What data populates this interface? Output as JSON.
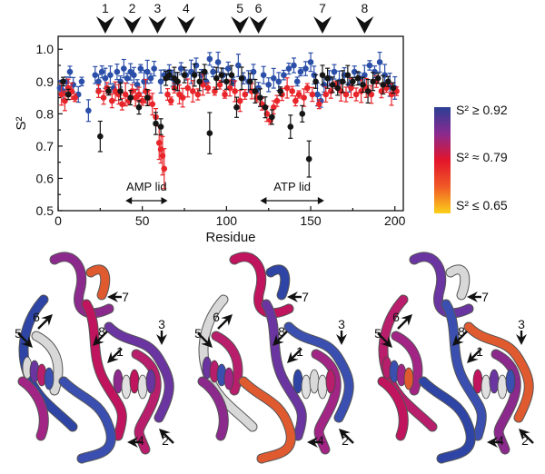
{
  "chart_data": {
    "type": "scatter",
    "xlabel": "Residue",
    "ylabel": "S²",
    "xlim": [
      0,
      205
    ],
    "ylim": [
      0.5,
      1.04
    ],
    "xticks": [
      0,
      50,
      100,
      150,
      200
    ],
    "yticks": [
      0.5,
      0.6,
      0.7,
      0.8,
      0.9,
      1.0
    ],
    "ytick_labels": [
      "0.5",
      "0.6",
      "0.7",
      "0.8",
      "0.9",
      "1.0"
    ],
    "top_markers": [
      {
        "label": "1",
        "residue": 28
      },
      {
        "label": "2",
        "residue": 44
      },
      {
        "label": "3",
        "residue": 59
      },
      {
        "label": "4",
        "residue": 76
      },
      {
        "label": "5",
        "residue": 108
      },
      {
        "label": "6",
        "residue": 119
      },
      {
        "label": "7",
        "residue": 157
      },
      {
        "label": "8",
        "residue": 182
      }
    ],
    "regions": [
      {
        "label": "AMP lid",
        "start": 40,
        "end": 65
      },
      {
        "label": "ATP lid",
        "start": 120,
        "end": 158
      }
    ],
    "series": [
      {
        "color": "#2b4fa8",
        "points": [
          [
            1,
            0.88
          ],
          [
            3,
            0.87
          ],
          [
            5,
            0.9
          ],
          [
            7,
            0.93
          ],
          [
            9,
            0.89
          ],
          [
            12,
            0.86
          ],
          [
            14,
            0.9
          ],
          [
            18,
            0.81
          ],
          [
            22,
            0.92
          ],
          [
            24,
            0.9
          ],
          [
            26,
            0.93
          ],
          [
            28,
            0.91
          ],
          [
            31,
            0.92
          ],
          [
            33,
            0.88
          ],
          [
            35,
            0.93
          ],
          [
            37,
            0.9
          ],
          [
            39,
            0.94
          ],
          [
            41,
            0.91
          ],
          [
            43,
            0.93
          ],
          [
            45,
            0.92
          ],
          [
            47,
            0.89
          ],
          [
            49,
            0.94
          ],
          [
            51,
            0.9
          ],
          [
            53,
            0.93
          ],
          [
            55,
            0.91
          ],
          [
            57,
            0.94
          ],
          [
            61,
            0.9
          ],
          [
            63,
            0.92
          ],
          [
            66,
            0.93
          ],
          [
            68,
            0.91
          ],
          [
            70,
            0.9
          ],
          [
            73,
            0.94
          ],
          [
            76,
            0.92
          ],
          [
            79,
            0.93
          ],
          [
            82,
            0.95
          ],
          [
            85,
            0.92
          ],
          [
            88,
            0.9
          ],
          [
            90,
            0.97
          ],
          [
            92,
            0.93
          ],
          [
            95,
            0.96
          ],
          [
            98,
            0.92
          ],
          [
            101,
            0.94
          ],
          [
            104,
            0.9
          ],
          [
            107,
            0.95
          ],
          [
            110,
            0.91
          ],
          [
            113,
            0.9
          ],
          [
            116,
            0.93
          ],
          [
            119,
            0.88
          ],
          [
            122,
            0.92
          ],
          [
            125,
            0.89
          ],
          [
            128,
            0.91
          ],
          [
            131,
            0.9
          ],
          [
            134,
            0.92
          ],
          [
            137,
            0.94
          ],
          [
            140,
            0.95
          ],
          [
            142,
            0.9
          ],
          [
            144,
            0.93
          ],
          [
            147,
            0.94
          ],
          [
            150,
            0.96
          ],
          [
            152,
            0.92
          ],
          [
            154,
            0.86
          ],
          [
            156,
            0.84
          ],
          [
            158,
            0.89
          ],
          [
            161,
            0.91
          ],
          [
            164,
            0.93
          ],
          [
            167,
            0.9
          ],
          [
            170,
            0.92
          ],
          [
            173,
            0.89
          ],
          [
            176,
            0.93
          ],
          [
            179,
            0.91
          ],
          [
            182,
            0.92
          ],
          [
            185,
            0.95
          ],
          [
            188,
            0.93
          ],
          [
            191,
            0.96
          ],
          [
            194,
            0.92
          ],
          [
            197,
            0.89
          ],
          [
            200,
            0.88
          ]
        ]
      },
      {
        "color": "#e8252a",
        "points": [
          [
            2,
            0.86
          ],
          [
            4,
            0.84
          ],
          [
            6,
            0.88
          ],
          [
            8,
            0.87
          ],
          [
            10,
            0.85
          ],
          [
            24,
            0.87
          ],
          [
            27,
            0.85
          ],
          [
            29,
            0.88
          ],
          [
            32,
            0.84
          ],
          [
            34,
            0.87
          ],
          [
            36,
            0.86
          ],
          [
            38,
            0.83
          ],
          [
            40,
            0.86
          ],
          [
            42,
            0.84
          ],
          [
            44,
            0.87
          ],
          [
            46,
            0.85
          ],
          [
            48,
            0.86
          ],
          [
            50,
            0.84
          ],
          [
            52,
            0.87
          ],
          [
            54,
            0.85
          ],
          [
            56,
            0.83
          ],
          [
            58,
            0.79
          ],
          [
            60,
            0.71
          ],
          [
            61,
            0.69
          ],
          [
            62,
            0.67
          ],
          [
            63,
            0.63
          ],
          [
            65,
            0.86
          ],
          [
            67,
            0.84
          ],
          [
            69,
            0.88
          ],
          [
            72,
            0.86
          ],
          [
            74,
            0.85
          ],
          [
            77,
            0.88
          ],
          [
            80,
            0.87
          ],
          [
            83,
            0.86
          ],
          [
            86,
            0.89
          ],
          [
            89,
            0.88
          ],
          [
            93,
            0.87
          ],
          [
            96,
            0.89
          ],
          [
            99,
            0.86
          ],
          [
            102,
            0.88
          ],
          [
            105,
            0.87
          ],
          [
            108,
            0.84
          ],
          [
            111,
            0.86
          ],
          [
            115,
            0.87
          ],
          [
            118,
            0.85
          ],
          [
            121,
            0.83
          ],
          [
            124,
            0.8
          ],
          [
            126,
            0.78
          ],
          [
            128,
            0.82
          ],
          [
            130,
            0.84
          ],
          [
            133,
            0.86
          ],
          [
            136,
            0.88
          ],
          [
            139,
            0.87
          ],
          [
            141,
            0.84
          ],
          [
            143,
            0.86
          ],
          [
            146,
            0.85
          ],
          [
            148,
            0.88
          ],
          [
            151,
            0.86
          ],
          [
            155,
            0.83
          ],
          [
            159,
            0.86
          ],
          [
            162,
            0.87
          ],
          [
            165,
            0.89
          ],
          [
            168,
            0.87
          ],
          [
            171,
            0.86
          ],
          [
            174,
            0.88
          ],
          [
            177,
            0.86
          ],
          [
            180,
            0.87
          ],
          [
            183,
            0.88
          ],
          [
            186,
            0.86
          ],
          [
            189,
            0.9
          ],
          [
            192,
            0.87
          ],
          [
            195,
            0.88
          ],
          [
            198,
            0.86
          ],
          [
            201,
            0.87
          ]
        ]
      },
      {
        "color": "#151515",
        "points": [
          [
            3,
            0.9
          ],
          [
            6,
            0.86
          ],
          [
            25,
            0.73
          ],
          [
            30,
            0.87
          ],
          [
            37,
            0.87
          ],
          [
            43,
            0.85
          ],
          [
            48,
            0.82
          ],
          [
            53,
            0.85
          ],
          [
            58,
            0.77
          ],
          [
            61,
            0.76
          ],
          [
            64,
            0.91
          ],
          [
            66,
            0.92
          ],
          [
            69,
            0.91
          ],
          [
            71,
            0.9
          ],
          [
            75,
            0.92
          ],
          [
            81,
            0.92
          ],
          [
            84,
            0.9
          ],
          [
            87,
            0.93
          ],
          [
            90,
            0.74
          ],
          [
            94,
            0.91
          ],
          [
            97,
            0.92
          ],
          [
            100,
            0.9
          ],
          [
            103,
            0.92
          ],
          [
            106,
            0.82
          ],
          [
            109,
            0.91
          ],
          [
            114,
            0.9
          ],
          [
            117,
            0.87
          ],
          [
            120,
            0.85
          ],
          [
            123,
            0.82
          ],
          [
            127,
            0.79
          ],
          [
            132,
            0.87
          ],
          [
            138,
            0.76
          ],
          [
            145,
            0.8
          ],
          [
            149,
            0.66
          ],
          [
            153,
            0.9
          ],
          [
            157,
            0.92
          ],
          [
            160,
            0.91
          ],
          [
            163,
            0.89
          ],
          [
            166,
            0.88
          ],
          [
            169,
            0.9
          ],
          [
            172,
            0.92
          ],
          [
            175,
            0.9
          ],
          [
            178,
            0.91
          ],
          [
            181,
            0.89
          ],
          [
            184,
            0.87
          ],
          [
            187,
            0.9
          ],
          [
            190,
            0.91
          ],
          [
            193,
            0.89
          ],
          [
            196,
            0.9
          ],
          [
            199,
            0.88
          ]
        ]
      }
    ]
  },
  "colorbar": {
    "labels": [
      "S² ≥ 0.92",
      "S² ≈ 0.79",
      "S² ≤ 0.65"
    ],
    "colors": [
      "#2b3f95",
      "#8a2a8f",
      "#e3152b",
      "#f05a26",
      "#fbd01a"
    ]
  },
  "structure_panels": [
    {
      "arrows": [
        "1",
        "2",
        "3",
        "4",
        "5",
        "6",
        "7",
        "8"
      ]
    },
    {
      "arrows": [
        "1",
        "2",
        "3",
        "4",
        "5",
        "6",
        "7",
        "8"
      ]
    },
    {
      "arrows": [
        "1",
        "2",
        "3",
        "4",
        "5",
        "6",
        "7",
        "8"
      ]
    }
  ]
}
